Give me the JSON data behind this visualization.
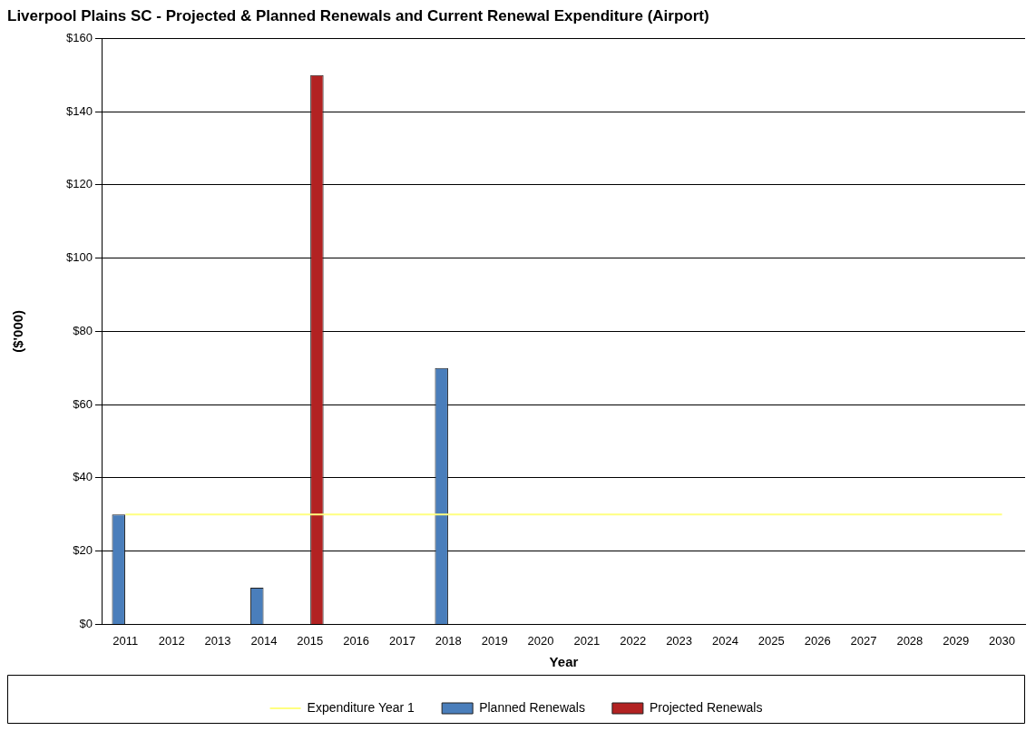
{
  "chart_data": {
    "type": "bar",
    "title": "Liverpool Plains SC - Projected & Planned Renewals and Current Renewal Expenditure (Airport)",
    "xlabel": "Year",
    "ylabel": "($'000)",
    "categories": [
      "2011",
      "2012",
      "2013",
      "2014",
      "2015",
      "2016",
      "2017",
      "2018",
      "2019",
      "2020",
      "2021",
      "2022",
      "2023",
      "2024",
      "2025",
      "2026",
      "2027",
      "2028",
      "2029",
      "2030"
    ],
    "series": [
      {
        "name": "Planned Renewals",
        "color": "#4a7ebb",
        "values": [
          30,
          0,
          0,
          10,
          0,
          0,
          0,
          70,
          0,
          0,
          0,
          0,
          0,
          0,
          0,
          0,
          0,
          0,
          0,
          0
        ]
      },
      {
        "name": "Projected Renewals",
        "color": "#b22222",
        "values": [
          0,
          0,
          0,
          0,
          150,
          0,
          0,
          0,
          0,
          0,
          0,
          0,
          0,
          0,
          0,
          0,
          0,
          0,
          0,
          0
        ]
      },
      {
        "name": "Expenditure Year 1",
        "type": "line",
        "color": "#ffff80",
        "values": [
          30,
          30,
          30,
          30,
          30,
          30,
          30,
          30,
          30,
          30,
          30,
          30,
          30,
          30,
          30,
          30,
          30,
          30,
          30,
          30
        ]
      }
    ],
    "ylim": [
      0,
      160
    ],
    "yticks": [
      {
        "value": 0,
        "label": "$0"
      },
      {
        "value": 20,
        "label": "$20"
      },
      {
        "value": 40,
        "label": "$40"
      },
      {
        "value": 60,
        "label": "$60"
      },
      {
        "value": 80,
        "label": "$80"
      },
      {
        "value": 100,
        "label": "$100"
      },
      {
        "value": 120,
        "label": "$120"
      },
      {
        "value": 140,
        "label": "$140"
      },
      {
        "value": 160,
        "label": "$160"
      }
    ],
    "grid": "y",
    "legend": "bottom"
  }
}
